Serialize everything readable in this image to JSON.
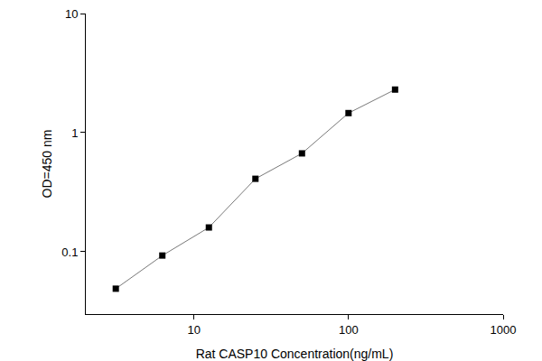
{
  "chart_data": {
    "type": "scatter",
    "x_label": "Rat CASP10 Concentration(ng/mL)",
    "y_label": "OD=450 nm",
    "x": [
      3.125,
      6.25,
      12.5,
      25,
      50,
      100,
      200
    ],
    "values": [
      0.049,
      0.093,
      0.16,
      0.41,
      0.67,
      1.46,
      2.3
    ],
    "color": "#000000",
    "marker": "square",
    "line_style": "solid",
    "log": true,
    "grid": false,
    "xlim": [
      2,
      1000
    ],
    "xticks": [
      10,
      100,
      1000
    ],
    "ylim": [
      0.03,
      10
    ],
    "yticks": [
      0.1,
      1,
      10
    ]
  }
}
